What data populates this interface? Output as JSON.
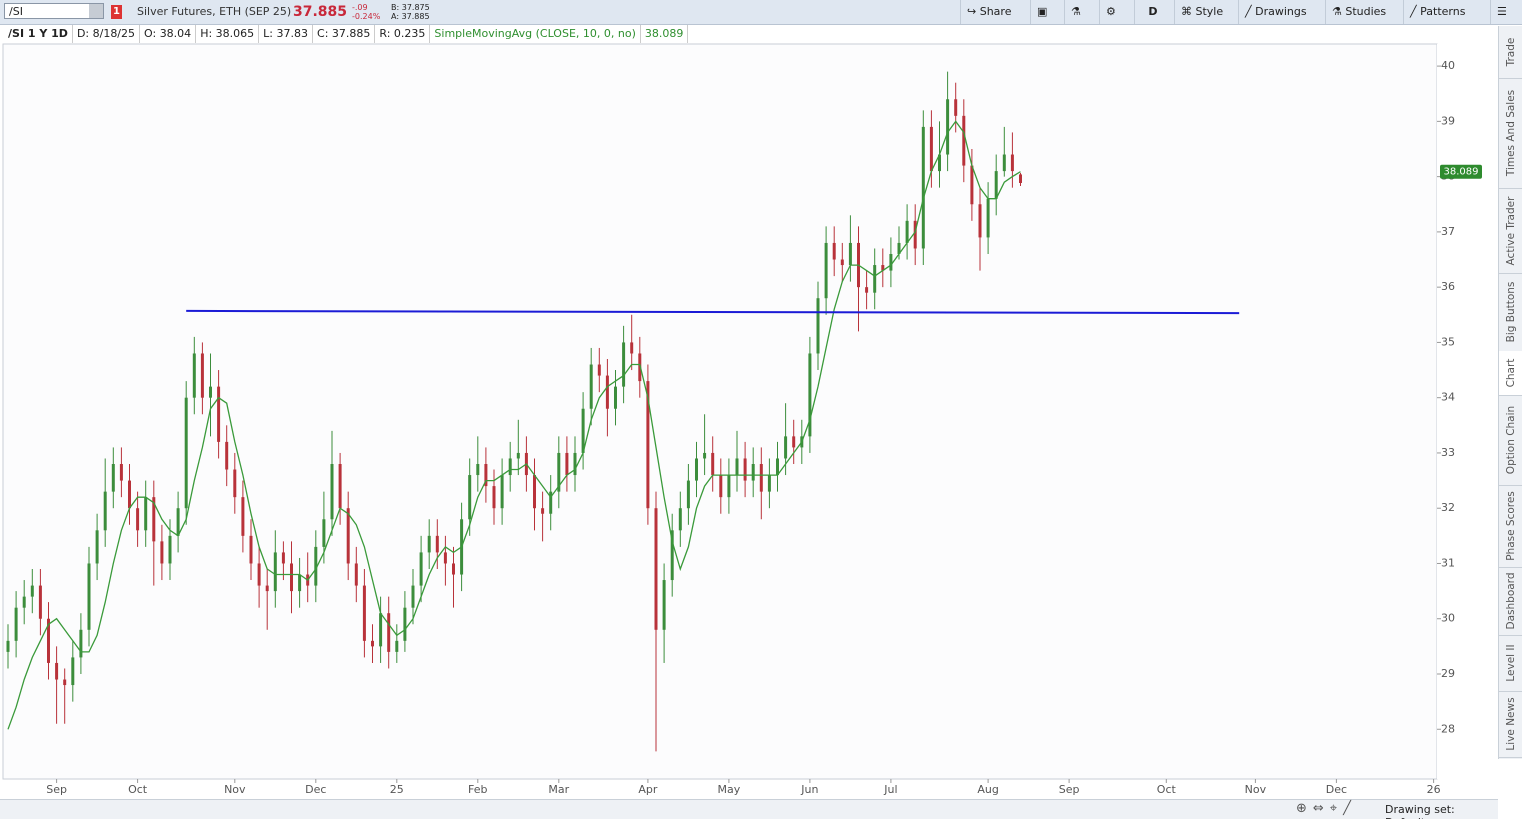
{
  "ui": {
    "symbol": "/SI",
    "alert_count": "1",
    "description": "Silver Futures, ETH (SEP 25)",
    "net_change": "-.09",
    "pct_change": "-0.24%",
    "bid": "B: 37.875",
    "ask": "A: 37.885",
    "buttons": {
      "share": "Share",
      "aggregation": "D",
      "style": "Style",
      "drawings": "Drawings",
      "studies": "Studies",
      "patterns": "Patterns"
    },
    "info": {
      "period": "/SI 1 Y 1D",
      "date": "D: 8/18/25",
      "open_label": "O:",
      "high_label": "H:",
      "low_label": "L:",
      "close_label": "C:",
      "range_label": "R:",
      "range": 0.235
    },
    "tabs": [
      "Trade",
      "Times And Sales",
      "Active Trader",
      "Big Buttons",
      "Chart",
      "Option Chain",
      "Phase Scores",
      "Dashboard",
      "Level II",
      "Live News"
    ],
    "active_tab": 4,
    "drawing_set": "Drawing set: Default"
  },
  "chart_data": {
    "type": "candlestick",
    "categories": [
      null,
      null,
      null,
      null,
      null,
      null,
      "Sep",
      null,
      null,
      null,
      null,
      null,
      null,
      null,
      null,
      null,
      "Oct",
      null,
      null,
      null,
      null,
      null,
      null,
      null,
      null,
      null,
      null,
      null,
      "Nov",
      null,
      null,
      null,
      null,
      null,
      null,
      null,
      null,
      null,
      "Dec",
      null,
      null,
      null,
      null,
      null,
      null,
      null,
      null,
      null,
      "25",
      null,
      null,
      null,
      null,
      null,
      null,
      null,
      null,
      null,
      "Feb",
      null,
      null,
      null,
      null,
      null,
      null,
      null,
      null,
      null,
      "Mar",
      null,
      null,
      null,
      null,
      null,
      null,
      null,
      null,
      null,
      null,
      "Apr",
      null,
      null,
      null,
      null,
      null,
      null,
      null,
      null,
      null,
      "May",
      null,
      null,
      null,
      null,
      null,
      null,
      null,
      null,
      null,
      "Jun",
      null,
      null,
      null,
      null,
      null,
      null,
      null,
      null,
      null,
      "Jul",
      null,
      null,
      null,
      null,
      null,
      null,
      null,
      null,
      null,
      null,
      null,
      "Aug",
      null,
      null,
      null,
      null,
      null,
      null,
      null,
      null,
      null,
      "Sep",
      null,
      null,
      null,
      null,
      null,
      null,
      null,
      null,
      null,
      null,
      null,
      "Oct",
      null,
      null,
      null,
      null,
      null,
      null,
      null,
      null,
      null,
      null,
      "Nov",
      null,
      null,
      null,
      null,
      null,
      null,
      null,
      null,
      null,
      "Dec",
      null,
      null,
      null,
      null,
      null,
      null,
      null,
      null,
      null,
      null,
      null,
      "26"
    ],
    "open": [
      29.4,
      29.6,
      30.2,
      30.4,
      30.6,
      30.0,
      29.2,
      28.9,
      28.8,
      29.3,
      29.8,
      31.0,
      31.6,
      32.3,
      32.8,
      32.5,
      32.0,
      31.6,
      32.2,
      31.4,
      31.0,
      31.5,
      32.0,
      34.0,
      34.8,
      34.0,
      34.2,
      33.2,
      32.7,
      32.2,
      31.5,
      31.0,
      30.6,
      30.5,
      31.2,
      31.0,
      30.5,
      30.8,
      30.6,
      31.3,
      31.8,
      32.8,
      32.0,
      31.0,
      30.6,
      29.6,
      29.5,
      30.1,
      29.4,
      29.6,
      30.2,
      30.6,
      31.2,
      31.5,
      31.2,
      31.0,
      30.8,
      31.8,
      32.6,
      32.8,
      32.4,
      32.0,
      32.6,
      32.9,
      33.0,
      32.6,
      32.0,
      31.9,
      32.3,
      33.0,
      32.6,
      33.0,
      33.8,
      34.6,
      34.4,
      33.8,
      34.2,
      35.0,
      34.8,
      34.3,
      32.0,
      29.8,
      30.7,
      31.6,
      32.0,
      32.5,
      32.9,
      33.0,
      32.6,
      32.2,
      32.6,
      32.9,
      32.5,
      32.8,
      32.3,
      32.6,
      32.9,
      33.3,
      33.1,
      33.3,
      34.8,
      35.8,
      36.8,
      36.5,
      36.4,
      36.8,
      36.0,
      35.9,
      36.4,
      36.3,
      36.6,
      36.8,
      37.2,
      36.7,
      38.9,
      38.1,
      38.4,
      39.4,
      39.1,
      38.2,
      37.5,
      36.9,
      37.6,
      38.1,
      38.4,
      38.04,
      null,
      null,
      null,
      null,
      null,
      null,
      null,
      null,
      null,
      null,
      null,
      null,
      null,
      null,
      null,
      null,
      null,
      null,
      null,
      null,
      null,
      null,
      null,
      null,
      null,
      null,
      null,
      null,
      null,
      null,
      null,
      null,
      null,
      null,
      null,
      null,
      null,
      null,
      null,
      null,
      null,
      null,
      null,
      null,
      null,
      null,
      null,
      null,
      null,
      null,
      null
    ],
    "high": [
      29.9,
      30.5,
      30.7,
      30.9,
      30.9,
      30.3,
      29.5,
      29.1,
      29.6,
      30.1,
      31.3,
      31.9,
      32.9,
      33.1,
      33.1,
      32.8,
      32.3,
      32.5,
      32.5,
      31.7,
      31.8,
      32.3,
      34.3,
      35.1,
      35.0,
      34.8,
      34.5,
      33.5,
      33.0,
      32.5,
      31.8,
      31.3,
      30.9,
      31.6,
      31.4,
      31.4,
      31.1,
      31.2,
      31.6,
      32.3,
      33.4,
      33.0,
      32.3,
      31.3,
      30.9,
      29.9,
      30.4,
      30.4,
      29.9,
      30.5,
      30.9,
      31.5,
      31.8,
      31.8,
      31.5,
      31.3,
      32.1,
      32.9,
      33.3,
      33.1,
      32.7,
      32.9,
      33.2,
      33.6,
      33.3,
      32.9,
      32.3,
      32.6,
      33.3,
      33.3,
      33.3,
      34.1,
      34.9,
      34.9,
      34.7,
      34.5,
      35.3,
      35.5,
      35.1,
      34.6,
      32.3,
      31.0,
      31.9,
      32.3,
      32.8,
      33.2,
      33.7,
      33.3,
      32.9,
      32.9,
      33.4,
      33.2,
      33.1,
      33.1,
      32.9,
      33.2,
      33.9,
      33.6,
      33.6,
      35.1,
      36.1,
      37.1,
      37.1,
      36.8,
      37.3,
      37.1,
      36.3,
      36.7,
      36.7,
      36.9,
      37.1,
      37.5,
      37.5,
      39.2,
      39.2,
      39.0,
      39.9,
      39.7,
      39.4,
      38.5,
      37.8,
      37.9,
      38.4,
      38.9,
      38.8,
      38.065,
      null,
      null,
      null,
      null,
      null,
      null,
      null,
      null,
      null,
      null,
      null,
      null,
      null,
      null,
      null,
      null,
      null,
      null,
      null,
      null,
      null,
      null,
      null,
      null,
      null,
      null,
      null,
      null,
      null,
      null,
      null,
      null,
      null,
      null,
      null,
      null,
      null,
      null,
      null,
      null,
      null,
      null,
      null,
      null,
      null,
      null,
      null,
      null,
      null,
      null,
      null
    ],
    "low": [
      29.1,
      29.3,
      29.9,
      30.1,
      29.7,
      28.9,
      28.1,
      28.1,
      28.5,
      29.0,
      29.5,
      30.7,
      31.3,
      32.0,
      32.2,
      31.7,
      31.3,
      31.3,
      30.6,
      30.7,
      30.7,
      31.2,
      31.7,
      33.7,
      33.7,
      33.3,
      32.9,
      32.4,
      31.9,
      31.2,
      30.7,
      30.2,
      29.8,
      30.2,
      30.7,
      30.1,
      30.2,
      30.3,
      30.3,
      31.0,
      31.5,
      31.7,
      30.7,
      30.3,
      29.3,
      29.2,
      29.2,
      29.1,
      29.2,
      29.4,
      29.9,
      30.3,
      30.9,
      30.9,
      30.6,
      30.2,
      30.5,
      31.5,
      32.3,
      32.1,
      31.7,
      31.7,
      32.3,
      32.6,
      32.3,
      31.6,
      31.4,
      31.6,
      32.0,
      32.3,
      32.3,
      32.7,
      33.5,
      34.1,
      33.3,
      33.5,
      33.9,
      34.5,
      34.0,
      31.7,
      27.6,
      29.2,
      30.4,
      31.3,
      31.7,
      32.2,
      32.6,
      32.3,
      31.9,
      31.9,
      32.3,
      32.2,
      32.2,
      31.8,
      32.0,
      32.3,
      32.6,
      32.8,
      32.8,
      33.0,
      34.5,
      35.5,
      36.2,
      36.1,
      36.1,
      35.2,
      35.6,
      35.6,
      36.0,
      36.0,
      36.5,
      36.5,
      36.4,
      36.4,
      37.8,
      37.8,
      38.1,
      38.8,
      37.9,
      37.2,
      36.3,
      36.6,
      37.3,
      38.0,
      37.8,
      37.83,
      null,
      null,
      null,
      null,
      null,
      null,
      null,
      null,
      null,
      null,
      null,
      null,
      null,
      null,
      null,
      null,
      null,
      null,
      null,
      null,
      null,
      null,
      null,
      null,
      null,
      null,
      null,
      null,
      null,
      null,
      null,
      null,
      null,
      null,
      null,
      null,
      null,
      null,
      null,
      null,
      null,
      null,
      null,
      null,
      null,
      null,
      null,
      null,
      null,
      null,
      null
    ],
    "close": [
      29.6,
      30.2,
      30.4,
      30.6,
      30.0,
      29.2,
      28.9,
      28.8,
      29.3,
      29.8,
      31.0,
      31.6,
      32.3,
      32.8,
      32.5,
      32.0,
      31.6,
      32.2,
      31.4,
      31.0,
      31.5,
      32.0,
      34.0,
      34.8,
      34.0,
      34.2,
      33.2,
      32.7,
      32.2,
      31.5,
      31.0,
      30.6,
      30.5,
      31.2,
      31.0,
      30.5,
      30.8,
      30.6,
      31.3,
      31.8,
      32.8,
      32.0,
      31.0,
      30.6,
      29.6,
      29.5,
      30.1,
      29.4,
      29.6,
      30.2,
      30.6,
      31.2,
      31.5,
      31.2,
      31.0,
      30.8,
      31.8,
      32.6,
      32.8,
      32.4,
      32.0,
      32.6,
      32.9,
      33.0,
      32.6,
      32.0,
      31.9,
      32.3,
      33.0,
      32.6,
      33.0,
      33.8,
      34.6,
      34.4,
      33.8,
      34.2,
      35.0,
      34.8,
      34.3,
      32.0,
      29.8,
      30.7,
      31.6,
      32.0,
      32.5,
      32.9,
      33.0,
      32.6,
      32.2,
      32.6,
      32.9,
      32.5,
      32.8,
      32.3,
      32.6,
      32.9,
      33.3,
      33.1,
      33.3,
      34.8,
      35.8,
      36.8,
      36.5,
      36.4,
      36.8,
      36.0,
      35.9,
      36.4,
      36.3,
      36.6,
      36.8,
      37.2,
      36.7,
      38.9,
      38.1,
      38.4,
      39.4,
      39.1,
      38.2,
      37.5,
      36.9,
      37.6,
      38.1,
      38.4,
      38.1,
      37.885,
      null,
      null,
      null,
      null,
      null,
      null,
      null,
      null,
      null,
      null,
      null,
      null,
      null,
      null,
      null,
      null,
      null,
      null,
      null,
      null,
      null,
      null,
      null,
      null,
      null,
      null,
      null,
      null,
      null,
      null,
      null,
      null,
      null,
      null,
      null,
      null,
      null,
      null,
      null,
      null,
      null,
      null,
      null,
      null,
      null,
      null,
      null,
      null,
      null,
      null,
      null
    ],
    "up_color": "#3c8d3c",
    "down_color": "#b8323a",
    "series": [
      {
        "name": "SimpleMovingAvg (CLOSE, 10, 0, no)",
        "color": "#3a9a3a",
        "values": [
          28.0,
          28.4,
          28.9,
          29.3,
          29.6,
          29.9,
          30.0,
          29.8,
          29.6,
          29.4,
          29.4,
          29.7,
          30.3,
          31.0,
          31.6,
          32.0,
          32.2,
          32.2,
          32.1,
          31.8,
          31.6,
          31.5,
          31.8,
          32.5,
          33.1,
          33.8,
          34.0,
          33.9,
          33.2,
          32.6,
          31.9,
          31.3,
          30.9,
          30.8,
          30.8,
          30.8,
          30.8,
          30.7,
          30.9,
          31.2,
          31.6,
          32.0,
          31.9,
          31.7,
          31.3,
          30.7,
          30.1,
          29.9,
          29.7,
          29.8,
          30.0,
          30.4,
          30.8,
          31.1,
          31.3,
          31.2,
          31.3,
          31.7,
          32.2,
          32.5,
          32.5,
          32.6,
          32.7,
          32.7,
          32.8,
          32.6,
          32.4,
          32.2,
          32.4,
          32.6,
          32.7,
          33.0,
          33.6,
          34.0,
          34.2,
          34.3,
          34.4,
          34.6,
          34.6,
          34.0,
          33.1,
          32.2,
          31.4,
          30.9,
          31.3,
          32.0,
          32.4,
          32.6,
          32.6,
          32.6,
          32.6,
          32.6,
          32.6,
          32.6,
          32.6,
          32.6,
          32.8,
          33.0,
          33.2,
          33.6,
          34.2,
          34.9,
          35.6,
          36.1,
          36.4,
          36.4,
          36.3,
          36.2,
          36.3,
          36.4,
          36.6,
          36.8,
          37.0,
          37.6,
          38.1,
          38.4,
          38.8,
          39.0,
          38.8,
          38.2,
          37.8,
          37.6,
          37.6,
          37.9,
          38.0,
          38.089,
          null,
          null,
          null,
          null,
          null,
          null,
          null,
          null,
          null,
          null,
          null,
          null,
          null,
          null,
          null,
          null,
          null,
          null,
          null,
          null,
          null,
          null,
          null,
          null,
          null,
          null,
          null,
          null,
          null,
          null,
          null,
          null,
          null,
          null,
          null,
          null,
          null,
          null,
          null,
          null,
          null,
          null,
          null,
          null,
          null,
          null,
          null,
          null,
          null,
          null,
          null
        ]
      }
    ],
    "trendline": {
      "color": "#1b1bd6",
      "x": [
        22,
        152
      ],
      "values": [
        35.57,
        35.53
      ]
    },
    "ylim": [
      27.1,
      40.4
    ],
    "yticks": [
      28,
      29,
      30,
      31,
      32,
      33,
      34,
      35,
      36,
      37,
      38,
      39,
      40
    ],
    "grid": false
  }
}
